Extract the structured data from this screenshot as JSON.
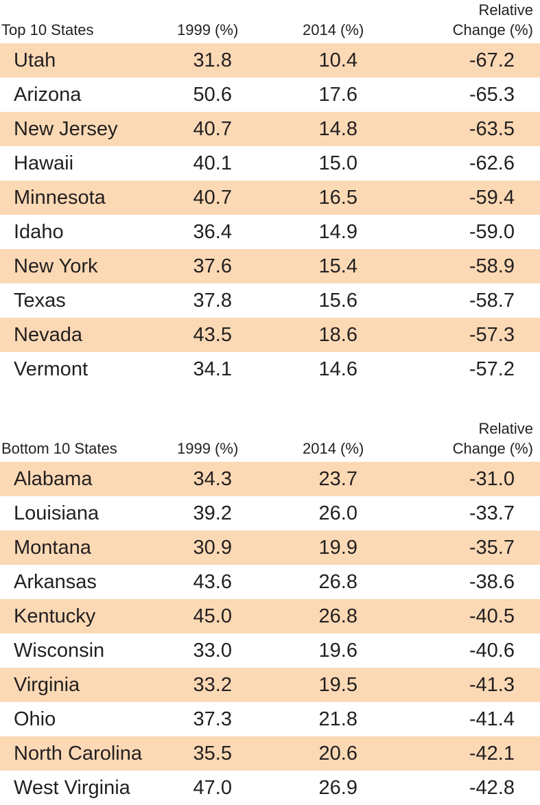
{
  "top": {
    "header": {
      "state": "Top 10 States",
      "y1999": "1999 (%)",
      "y2014": "2014 (%)",
      "rel_line1": "Relative",
      "rel_line2": "Change (%)"
    },
    "rows": [
      {
        "state": "Utah",
        "y1999": "31.8",
        "y2014": "10.4",
        "change": "-67.2"
      },
      {
        "state": "Arizona",
        "y1999": "50.6",
        "y2014": "17.6",
        "change": "-65.3"
      },
      {
        "state": "New Jersey",
        "y1999": "40.7",
        "y2014": "14.8",
        "change": "-63.5"
      },
      {
        "state": "Hawaii",
        "y1999": "40.1",
        "y2014": "15.0",
        "change": "-62.6"
      },
      {
        "state": "Minnesota",
        "y1999": "40.7",
        "y2014": "16.5",
        "change": "-59.4"
      },
      {
        "state": "Idaho",
        "y1999": "36.4",
        "y2014": "14.9",
        "change": "-59.0"
      },
      {
        "state": "New York",
        "y1999": "37.6",
        "y2014": "15.4",
        "change": "-58.9"
      },
      {
        "state": "Texas",
        "y1999": "37.8",
        "y2014": "15.6",
        "change": "-58.7"
      },
      {
        "state": "Nevada",
        "y1999": "43.5",
        "y2014": "18.6",
        "change": "-57.3"
      },
      {
        "state": "Vermont",
        "y1999": "34.1",
        "y2014": "14.6",
        "change": "-57.2"
      }
    ]
  },
  "bottom": {
    "header": {
      "state": "Bottom 10 States",
      "y1999": "1999 (%)",
      "y2014": "2014 (%)",
      "rel_line1": "Relative",
      "rel_line2": "Change (%)"
    },
    "rows": [
      {
        "state": "Alabama",
        "y1999": "34.3",
        "y2014": "23.7",
        "change": "-31.0"
      },
      {
        "state": "Louisiana",
        "y1999": "39.2",
        "y2014": "26.0",
        "change": "-33.7"
      },
      {
        "state": "Montana",
        "y1999": "30.9",
        "y2014": "19.9",
        "change": "-35.7"
      },
      {
        "state": "Arkansas",
        "y1999": "43.6",
        "y2014": "26.8",
        "change": "-38.6"
      },
      {
        "state": "Kentucky",
        "y1999": "45.0",
        "y2014": "26.8",
        "change": "-40.5"
      },
      {
        "state": "Wisconsin",
        "y1999": "33.0",
        "y2014": "19.6",
        "change": "-40.6"
      },
      {
        "state": "Virginia",
        "y1999": "33.2",
        "y2014": "19.5",
        "change": "-41.3"
      },
      {
        "state": "Ohio",
        "y1999": "37.3",
        "y2014": "21.8",
        "change": "-41.4"
      },
      {
        "state": "North Carolina",
        "y1999": "35.5",
        "y2014": "20.6",
        "change": "-42.1"
      },
      {
        "state": "West Virginia",
        "y1999": "47.0",
        "y2014": "26.9",
        "change": "-42.8"
      }
    ]
  },
  "colors": {
    "row_shade": "#fbd9b5",
    "text": "#231f20"
  }
}
